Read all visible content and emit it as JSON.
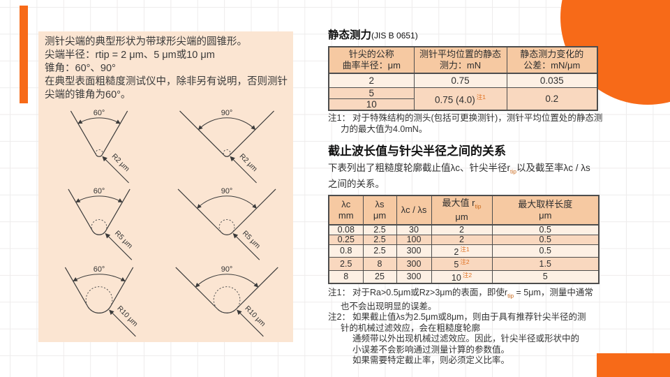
{
  "colors": {
    "accent": "#f76a18",
    "panel_bg": "#fbe5d2",
    "table_header_bg": "#f6c9a2",
    "row_light": "#fdf0e4",
    "row_mid": "#f9d8bf",
    "table_border": "#4d4d4d",
    "grid_line": "#eeecec",
    "note_ref": "#e07020"
  },
  "stylus_panel": {
    "lines": [
      "测针尖端的典型形状为带球形尖端的圆锥形。",
      "尖端半径：rtip = 2 μm、5 μm或10 μm",
      "锥角：60°、90°",
      "在典型表面粗糙度测试仪中，除非另有说明，否则测针",
      "尖端的锥角为60°。"
    ],
    "diagrams": [
      {
        "angle": 60,
        "angle_label": "60°",
        "radius_label": "R2 μm",
        "r": 5
      },
      {
        "angle": 90,
        "angle_label": "90°",
        "radius_label": "R2 μm",
        "r": 5
      },
      {
        "angle": 60,
        "angle_label": "60°",
        "radius_label": "R5 μm",
        "r": 11
      },
      {
        "angle": 90,
        "angle_label": "90°",
        "radius_label": "R5 μm",
        "r": 11
      },
      {
        "angle": 60,
        "angle_label": "60°",
        "radius_label": "R10 μm",
        "r": 19
      },
      {
        "angle": 90,
        "angle_label": "90°",
        "radius_label": "R10 μm",
        "r": 19
      }
    ]
  },
  "static_force": {
    "title": "静态测力",
    "title_suffix": "(JIS B 0651)",
    "table": {
      "headers": [
        [
          "针尖的公称",
          "曲率半径：μm"
        ],
        [
          "测针平均位置的静态",
          "测力：mN"
        ],
        [
          "静态测力变化的",
          "公差：mN/μm"
        ]
      ],
      "row1": [
        "2",
        "0.75",
        "0.035"
      ],
      "merged_radii": [
        "5",
        "10"
      ],
      "merged_force": "0.75 (4.0)",
      "merged_force_note": "注1",
      "merged_tolerance": "0.2"
    },
    "note": {
      "label": "注1：",
      "line1": "对于特殊结构的测头(包括可更换测针)，测针平均位置处的静态测",
      "line2": "力的最大值为4.0mN。"
    }
  },
  "cutoff": {
    "title": "截止波长值与针尖半径之间的关系",
    "intro_pre": "下表列出了粗糙度轮廓截止值λc、针尖半径r",
    "intro_sub": "tip",
    "intro_post": "以及截至率λc / λs",
    "intro_line2": "之间的关系。",
    "table": {
      "headers": [
        {
          "line1": "λc",
          "line2": "mm"
        },
        {
          "line1": "λs",
          "line2": "μm"
        },
        {
          "line1": "λc / λs",
          "line2": ""
        },
        {
          "line1": "最大值 r",
          "sub": "tip",
          "line2": "μm"
        },
        {
          "line1": "最大取样长度",
          "line2": "μm"
        }
      ],
      "rows": [
        {
          "cells": [
            "0.08",
            "2.5",
            "30",
            "2",
            "0.5"
          ],
          "note": ""
        },
        {
          "cells": [
            "0.25",
            "2.5",
            "100",
            "2",
            "0.5"
          ],
          "note": ""
        },
        {
          "cells": [
            "0.8",
            "2.5",
            "300",
            "2",
            "0.5"
          ],
          "note": "注1"
        },
        {
          "cells": [
            "2.5",
            "8",
            "300",
            "5",
            "1.5"
          ],
          "note": "注2"
        },
        {
          "cells": [
            "8",
            "25",
            "300",
            "10",
            "5"
          ],
          "note": "注2"
        }
      ]
    },
    "note1": {
      "label": "注1：",
      "line1_pre": "对于Ra>0.5μm或Rz>3μm的表面，即使r",
      "line1_sub": "tip",
      "line1_post": " = 5μm，测量中通常",
      "line2": "也不会出现明显的误差。"
    },
    "note2": {
      "label": "注2：",
      "lines": [
        "如果截止值λs为2.5μm或8μm，则由于具有推荐针尖半径的测",
        "针的机械过滤效应，会在粗糙度轮廓",
        "通频带以外出现机械过滤效应。因此，针尖半径或形状中的",
        "小误差不会影响通过测量计算的参数值。",
        "如果需要特定截止率，则必须定义比率。"
      ]
    }
  }
}
